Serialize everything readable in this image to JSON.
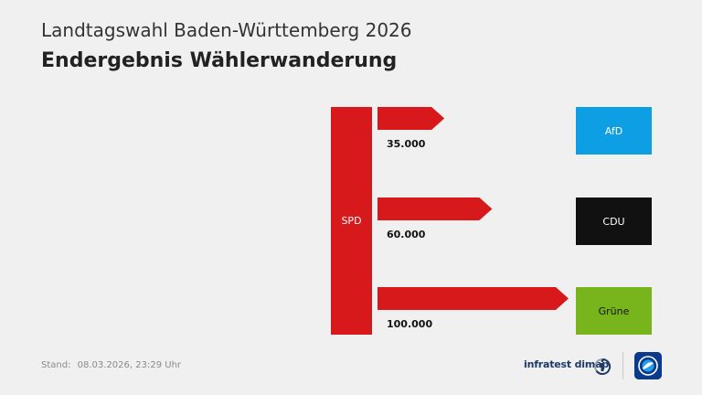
{
  "header": {
    "supertitle": "Landtagswahl Baden-Württemberg 2026",
    "title": "Endergebnis Wählerwanderung"
  },
  "diagram": {
    "source": {
      "label": "SPD",
      "color": "#d7191c"
    },
    "flows": [
      {
        "from": "SPD",
        "to": "AfD",
        "value_label": "35.000",
        "value": 35000
      },
      {
        "from": "SPD",
        "to": "CDU",
        "value_label": "60.000",
        "value": 60000
      },
      {
        "from": "SPD",
        "to": "Grüne",
        "value_label": "100.000",
        "value": 100000
      }
    ],
    "targets": [
      {
        "label": "AfD",
        "color": "#0d9ee3",
        "text_color": "#ffffff"
      },
      {
        "label": "CDU",
        "color": "#111111",
        "text_color": "#ffffff"
      },
      {
        "label": "Grüne",
        "color": "#78b51d",
        "text_color": "#111111"
      }
    ]
  },
  "footer": {
    "stand_label": "Stand:",
    "stand_value": "08.03.2026, 23:29 Uhr",
    "brand": "infratest dimap",
    "logo_icon": "tagesschau-logo-icon"
  }
}
